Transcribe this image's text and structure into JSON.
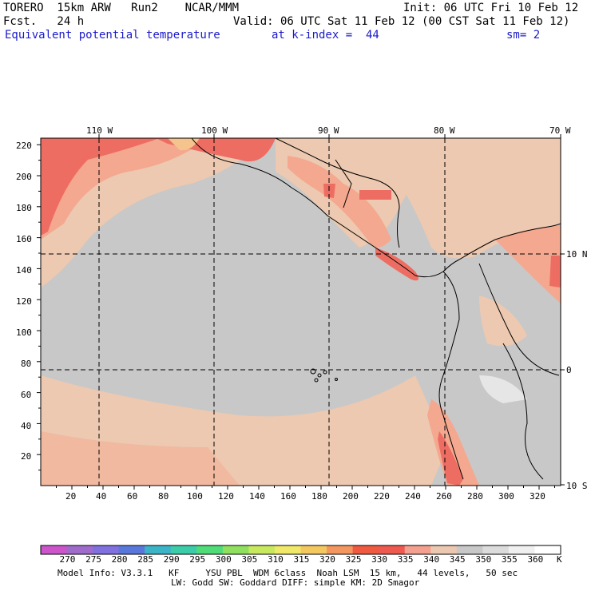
{
  "header": {
    "model": "TORERO  15km ARW   Run2    NCAR/MMM",
    "init": "Init: 06 UTC Fri 10 Feb 12",
    "fcst": "Fcst.   24 h",
    "valid": "Valid: 06 UTC Sat 11 Feb 12 (00 CST Sat 11 Feb 12)",
    "field": "Equivalent potential temperature",
    "level": "at k-index =  44",
    "smooth": "sm= 2"
  },
  "map": {
    "lon_labels": [
      "110 W",
      "100 W",
      "90 W",
      "80 W",
      "70 W"
    ],
    "lat_labels": [
      "10 N",
      "0",
      "10 S"
    ],
    "y_ticks": [
      "20",
      "40",
      "60",
      "80",
      "100",
      "120",
      "140",
      "160",
      "180",
      "200",
      "220"
    ],
    "x_ticks": [
      "20",
      "40",
      "60",
      "80",
      "100",
      "120",
      "140",
      "160",
      "180",
      "200",
      "220",
      "240",
      "260",
      "280",
      "300",
      "320"
    ],
    "colors": {
      "ocean": "#c8c8c8",
      "warm1": "#ecc9b0",
      "warm2": "#f4a890",
      "warm3": "#ee6d62",
      "hot": "#f0503c"
    }
  },
  "colorbar": {
    "labels": [
      "270",
      "275",
      "280",
      "285",
      "290",
      "295",
      "300",
      "305",
      "310",
      "315",
      "320",
      "325",
      "330",
      "335",
      "340",
      "345",
      "350",
      "355",
      "360"
    ],
    "unit": "K",
    "colors": [
      "#cc55cc",
      "#a06ccc",
      "#8070e0",
      "#5a78dc",
      "#3cb4c8",
      "#3cccaa",
      "#50dc78",
      "#90e060",
      "#c8e860",
      "#f0e868",
      "#f4c860",
      "#f49660",
      "#f05a40",
      "#ee5a50",
      "#f4a090",
      "#ecc8b0",
      "#c8c8c8",
      "#dcdcdc",
      "#f0f0f0",
      "#ffffff"
    ]
  },
  "footer": {
    "line1": "Model Info: V3.3.1   KF     YSU PBL  WDM 6class  Noah LSM  15 km,   44 levels,   50 sec",
    "line2": "LW: Godd SW: Goddard DIFF: simple KM: 2D Smagor"
  }
}
